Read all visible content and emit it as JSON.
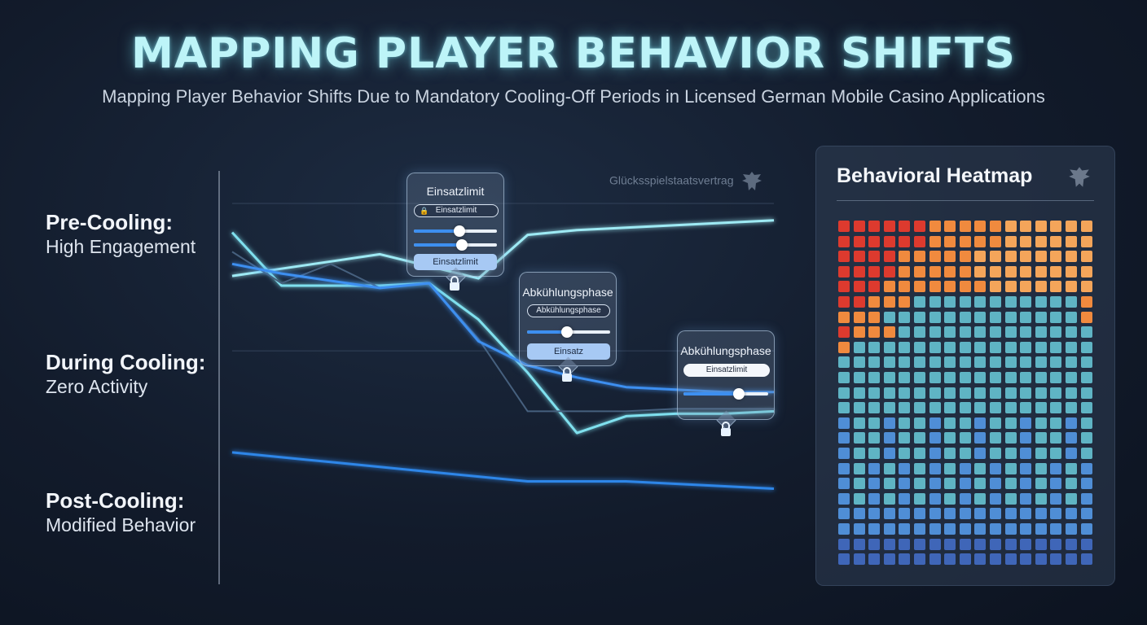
{
  "header": {
    "title": "MAPPING PLAYER BEHAVIOR SHIFTS",
    "subtitle": "Mapping Player Behavior Shifts Due to Mandatory Cooling-Off Periods in Licensed German Mobile Casino Applications"
  },
  "stages": [
    {
      "stage": "Pre-Cooling:",
      "desc": "High Engagement"
    },
    {
      "stage": "During Cooling:",
      "desc": "Zero Activity"
    },
    {
      "stage": "Post-Cooling:",
      "desc": "Modified Behavior"
    }
  ],
  "watermark": {
    "text": "Glücksspielstaatsvertrag",
    "icon": "eagle-emblem-icon"
  },
  "panels": {
    "p1": {
      "title": "Einsatzlimit",
      "pill": "Einsatzlimit",
      "button": "Einsatzlimit",
      "slider_levels": [
        0.55,
        0.58
      ],
      "icon": "lock-icon"
    },
    "p2": {
      "title": "Abkühlungsphase",
      "pill": "Abkühlungsphase",
      "button": "Einsatz",
      "slider_levels": [
        0.48
      ],
      "icon": "lock-icon"
    },
    "p3": {
      "title": "Abkühlungsphase",
      "pill": "Einsatzlimit",
      "slider_levels": [
        0.65
      ],
      "icon": "lock-icon"
    }
  },
  "heatmap": {
    "title": "Behavioral Heatmap",
    "icon": "eagle-emblem-icon",
    "rows": 23,
    "cols": 17,
    "colors": {
      "red": "#dd3a2e",
      "orange": "#f08a3e",
      "peach": "#f4a55a",
      "teal": "#5fb4c4",
      "blue": "#4f8ed6",
      "navy": "#3f66b8"
    }
  },
  "chart_data": {
    "type": "line",
    "title": "",
    "xlabel": "",
    "ylabel": "",
    "x": [
      0,
      1,
      2,
      3,
      4,
      5,
      6,
      7,
      8,
      9,
      10,
      11
    ],
    "ylim": [
      0,
      100
    ],
    "grid": true,
    "series": [
      {
        "color": "#9eeaf4",
        "values": [
          70,
          73,
          76,
          79,
          74,
          69,
          87,
          89,
          90,
          91,
          92,
          93
        ]
      },
      {
        "color": "#7fe0ee",
        "values": [
          88,
          66,
          66,
          66,
          67,
          52,
          30,
          5,
          12,
          13,
          13,
          14
        ]
      },
      {
        "color": "#46607e",
        "values": [
          80,
          67,
          75,
          65,
          67,
          44,
          14,
          14,
          14,
          15,
          15,
          15
        ]
      },
      {
        "color": "#3d8ff0",
        "values": [
          75,
          71,
          68,
          65,
          67,
          43,
          33,
          28,
          24,
          23,
          22,
          22
        ]
      },
      {
        "color": "#7fd7e8",
        "values": [
          47,
          47,
          47,
          47,
          47,
          47,
          47,
          47,
          47,
          47,
          47,
          47
        ]
      },
      {
        "color": "#2f86e8",
        "values": [
          -3,
          -5,
          -7,
          -9,
          -11,
          -13,
          -15,
          -15,
          -15,
          -16,
          -17,
          -18
        ]
      }
    ]
  }
}
